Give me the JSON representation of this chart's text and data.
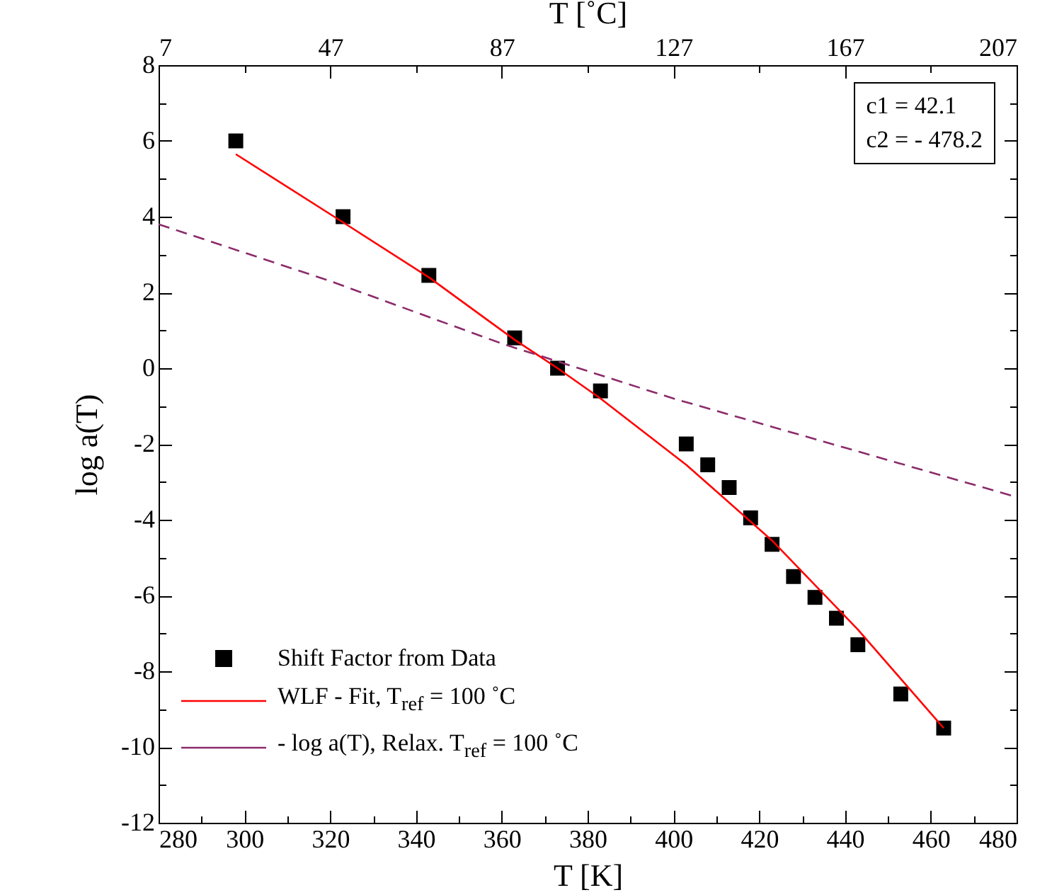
{
  "chart_data": {
    "type": "scatter",
    "xlabel": "T [K]",
    "x2label": "T [˚C]",
    "ylabel": "log a(T)",
    "xlim": [
      280,
      480
    ],
    "xticks": [
      280,
      {
        "value": 290,
        "label": null
      },
      300,
      {
        "value": 310,
        "label": null
      },
      320,
      {
        "value": 330,
        "label": null
      },
      340,
      {
        "value": 350,
        "label": null
      },
      360,
      {
        "value": 370,
        "label": null
      },
      380,
      {
        "value": 390,
        "label": null
      },
      400,
      {
        "value": 410,
        "label": null
      },
      420,
      {
        "value": 430,
        "label": null
      },
      440,
      {
        "value": 450,
        "label": null
      },
      460,
      {
        "value": 470,
        "label": null
      },
      480
    ],
    "x2lim": [
      7,
      207
    ],
    "x2ticks": [
      7,
      {
        "value": 27,
        "label": null
      },
      47,
      {
        "value": 67,
        "label": null
      },
      87,
      {
        "value": 107,
        "label": null
      },
      127,
      {
        "value": 147,
        "label": null
      },
      167,
      {
        "value": 187,
        "label": null
      },
      207
    ],
    "ylim": [
      -12,
      8
    ],
    "yticks": [
      -12,
      {
        "value": -11,
        "label": null
      },
      -10,
      {
        "value": -9,
        "label": null
      },
      -8,
      {
        "value": -7,
        "label": null
      },
      -6,
      {
        "value": -5,
        "label": null
      },
      -4,
      {
        "value": -3,
        "label": null
      },
      -2,
      {
        "value": -1,
        "label": null
      },
      0,
      {
        "value": 1,
        "label": null
      },
      2,
      {
        "value": 3,
        "label": null
      },
      4,
      {
        "value": 5,
        "label": null
      },
      6,
      {
        "value": 7,
        "label": null
      },
      8
    ],
    "grid": false,
    "legend": "bottom left",
    "annotations": [
      "c1 = 42.1",
      "c2 = - 478.2"
    ],
    "series": [
      {
        "name": "Shift Factor from Data",
        "type": "scatter",
        "marker": "square",
        "color": "#000000",
        "x": [
          298,
          323,
          343,
          363,
          373,
          383,
          403,
          408,
          413,
          418,
          423,
          428,
          433,
          438,
          443,
          453,
          463
        ],
        "values": [
          6,
          4,
          2.45,
          0.8,
          0,
          -0.6,
          -2,
          -2.55,
          -3.15,
          -3.95,
          -4.65,
          -5.5,
          -6.05,
          -6.6,
          -7.3,
          -8.6,
          -9.5
        ]
      },
      {
        "name": "WLF - Fit, T$_{ref}$ = 100 ˚C",
        "type": "line",
        "line_style": "solid",
        "color": "#ff0000",
        "x": [
          298,
          323,
          343,
          363,
          373,
          383,
          403,
          423,
          443,
          463
        ],
        "values": [
          5.65,
          3.85,
          2.4,
          0.75,
          0,
          -0.8,
          -2.55,
          -4.55,
          -6.9,
          -9.5
        ]
      },
      {
        "name": "- log a(T), Relax. T$_{ref}$ = 100 ˚C",
        "type": "line",
        "line_style": "dashed",
        "color": "#8b2c6b",
        "x": [
          280,
          320,
          360,
          400,
          440,
          480
        ],
        "values": [
          3.8,
          2.3,
          0.65,
          -0.8,
          -2.1,
          -3.4
        ]
      }
    ]
  }
}
